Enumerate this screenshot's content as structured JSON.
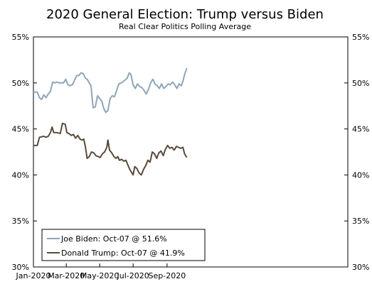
{
  "chart_data": {
    "type": "line",
    "title": "2020 General Election: Trump versus Biden",
    "subtitle": "Real Clear Politics Polling Average",
    "xlabel": "",
    "ylabel": "",
    "x_ticks": [
      "Jan-2020",
      "Mar-2020",
      "May-2020",
      "Jul-2020",
      "Sep-2020"
    ],
    "x_range": [
      "2020-01-01",
      "2020-10-31"
    ],
    "y_ticks": [
      "30%",
      "35%",
      "40%",
      "45%",
      "50%",
      "55%"
    ],
    "ylim": [
      30,
      55
    ],
    "grid": false,
    "legend_position": "bottom-left",
    "legend": [
      "Joe Biden: Oct-07 @ 51.6%",
      "Donald Trump: Oct-07 @ 41.9%"
    ],
    "series": [
      {
        "name": "Joe Biden: Oct-07 @ 51.6%",
        "color": "#8fa6b8",
        "points": [
          [
            "2020-01-01",
            49.0
          ],
          [
            "2020-01-08",
            49.0
          ],
          [
            "2020-01-12",
            48.4
          ],
          [
            "2020-01-16",
            48.2
          ],
          [
            "2020-01-20",
            48.7
          ],
          [
            "2020-01-24",
            48.4
          ],
          [
            "2020-01-28",
            48.8
          ],
          [
            "2020-02-01",
            49.1
          ],
          [
            "2020-02-05",
            50.1
          ],
          [
            "2020-02-09",
            50.0
          ],
          [
            "2020-02-13",
            50.1
          ],
          [
            "2020-02-17",
            50.0
          ],
          [
            "2020-02-21",
            50.0
          ],
          [
            "2020-02-25",
            50.0
          ],
          [
            "2020-02-29",
            50.4
          ],
          [
            "2020-03-04",
            49.8
          ],
          [
            "2020-03-08",
            49.7
          ],
          [
            "2020-03-12",
            49.8
          ],
          [
            "2020-03-16",
            50.3
          ],
          [
            "2020-03-20",
            50.8
          ],
          [
            "2020-03-24",
            50.8
          ],
          [
            "2020-03-28",
            51.1
          ],
          [
            "2020-04-01",
            51.0
          ],
          [
            "2020-04-05",
            50.5
          ],
          [
            "2020-04-08",
            50.4
          ],
          [
            "2020-04-12",
            50.0
          ],
          [
            "2020-04-15",
            49.7
          ],
          [
            "2020-04-19",
            47.3
          ],
          [
            "2020-04-23",
            47.4
          ],
          [
            "2020-04-27",
            48.6
          ],
          [
            "2020-05-01",
            48.3
          ],
          [
            "2020-05-05",
            48.0
          ],
          [
            "2020-05-08",
            47.3
          ],
          [
            "2020-05-12",
            46.8
          ],
          [
            "2020-05-16",
            47.0
          ],
          [
            "2020-05-20",
            48.3
          ],
          [
            "2020-05-24",
            48.6
          ],
          [
            "2020-05-28",
            48.5
          ],
          [
            "2020-06-01",
            49.2
          ],
          [
            "2020-06-05",
            49.9
          ],
          [
            "2020-06-09",
            50.0
          ],
          [
            "2020-06-12",
            50.1
          ],
          [
            "2020-06-16",
            50.3
          ],
          [
            "2020-06-20",
            50.5
          ],
          [
            "2020-06-24",
            51.1
          ],
          [
            "2020-06-27",
            50.9
          ],
          [
            "2020-07-01",
            49.8
          ],
          [
            "2020-07-05",
            49.4
          ],
          [
            "2020-07-09",
            49.9
          ],
          [
            "2020-07-13",
            49.6
          ],
          [
            "2020-07-17",
            49.5
          ],
          [
            "2020-07-21",
            49.2
          ],
          [
            "2020-07-25",
            48.8
          ],
          [
            "2020-07-29",
            49.3
          ],
          [
            "2020-08-02",
            50.0
          ],
          [
            "2020-08-06",
            50.4
          ],
          [
            "2020-08-10",
            49.9
          ],
          [
            "2020-08-14",
            49.7
          ],
          [
            "2020-08-18",
            49.4
          ],
          [
            "2020-08-22",
            49.9
          ],
          [
            "2020-08-26",
            49.4
          ],
          [
            "2020-08-30",
            49.6
          ],
          [
            "2020-09-03",
            49.9
          ],
          [
            "2020-09-07",
            49.8
          ],
          [
            "2020-09-11",
            50.1
          ],
          [
            "2020-09-15",
            49.8
          ],
          [
            "2020-09-19",
            49.4
          ],
          [
            "2020-09-23",
            49.9
          ],
          [
            "2020-09-27",
            49.7
          ],
          [
            "2020-09-30",
            50.2
          ],
          [
            "2020-10-03",
            50.9
          ],
          [
            "2020-10-07",
            51.6
          ]
        ]
      },
      {
        "name": "Donald Trump: Oct-07 @ 41.9%",
        "color": "#5a4a3a",
        "points": [
          [
            "2020-01-01",
            43.2
          ],
          [
            "2020-01-08",
            43.2
          ],
          [
            "2020-01-12",
            44.1
          ],
          [
            "2020-01-20",
            44.2
          ],
          [
            "2020-01-24",
            44.1
          ],
          [
            "2020-01-28",
            44.2
          ],
          [
            "2020-02-01",
            44.6
          ],
          [
            "2020-02-04",
            45.2
          ],
          [
            "2020-02-07",
            44.6
          ],
          [
            "2020-02-13",
            44.6
          ],
          [
            "2020-02-19",
            44.5
          ],
          [
            "2020-02-23",
            45.6
          ],
          [
            "2020-02-28",
            45.5
          ],
          [
            "2020-03-02",
            44.6
          ],
          [
            "2020-03-06",
            44.5
          ],
          [
            "2020-03-10",
            44.3
          ],
          [
            "2020-03-14",
            44.4
          ],
          [
            "2020-03-18",
            44.0
          ],
          [
            "2020-03-22",
            44.3
          ],
          [
            "2020-03-26",
            43.9
          ],
          [
            "2020-03-30",
            43.8
          ],
          [
            "2020-04-02",
            43.9
          ],
          [
            "2020-04-05",
            43.0
          ],
          [
            "2020-04-08",
            41.8
          ],
          [
            "2020-04-12",
            42.0
          ],
          [
            "2020-04-16",
            42.5
          ],
          [
            "2020-04-20",
            42.4
          ],
          [
            "2020-04-24",
            42.1
          ],
          [
            "2020-04-28",
            42.0
          ],
          [
            "2020-05-02",
            41.9
          ],
          [
            "2020-05-06",
            42.3
          ],
          [
            "2020-05-10",
            42.5
          ],
          [
            "2020-05-14",
            43.0
          ],
          [
            "2020-05-16",
            43.8
          ],
          [
            "2020-05-19",
            42.7
          ],
          [
            "2020-05-23",
            42.4
          ],
          [
            "2020-05-27",
            42.0
          ],
          [
            "2020-05-31",
            41.8
          ],
          [
            "2020-06-03",
            42.0
          ],
          [
            "2020-06-06",
            41.6
          ],
          [
            "2020-06-10",
            41.7
          ],
          [
            "2020-06-14",
            41.5
          ],
          [
            "2020-06-18",
            41.6
          ],
          [
            "2020-06-22",
            41.0
          ],
          [
            "2020-06-25",
            40.6
          ],
          [
            "2020-06-28",
            40.3
          ],
          [
            "2020-07-01",
            40.0
          ],
          [
            "2020-07-04",
            40.9
          ],
          [
            "2020-07-08",
            40.7
          ],
          [
            "2020-07-12",
            40.2
          ],
          [
            "2020-07-16",
            40.0
          ],
          [
            "2020-07-20",
            40.6
          ],
          [
            "2020-07-24",
            41.0
          ],
          [
            "2020-07-28",
            41.6
          ],
          [
            "2020-08-01",
            41.4
          ],
          [
            "2020-08-05",
            42.5
          ],
          [
            "2020-08-09",
            42.3
          ],
          [
            "2020-08-13",
            41.8
          ],
          [
            "2020-08-17",
            42.4
          ],
          [
            "2020-08-21",
            42.6
          ],
          [
            "2020-08-25",
            42.1
          ],
          [
            "2020-08-29",
            42.8
          ],
          [
            "2020-09-02",
            43.2
          ],
          [
            "2020-09-06",
            42.9
          ],
          [
            "2020-09-10",
            43.0
          ],
          [
            "2020-09-14",
            42.7
          ],
          [
            "2020-09-18",
            43.1
          ],
          [
            "2020-09-22",
            43.0
          ],
          [
            "2020-09-26",
            42.9
          ],
          [
            "2020-09-30",
            43.0
          ],
          [
            "2020-10-03",
            42.3
          ],
          [
            "2020-10-07",
            41.9
          ]
        ]
      }
    ]
  }
}
